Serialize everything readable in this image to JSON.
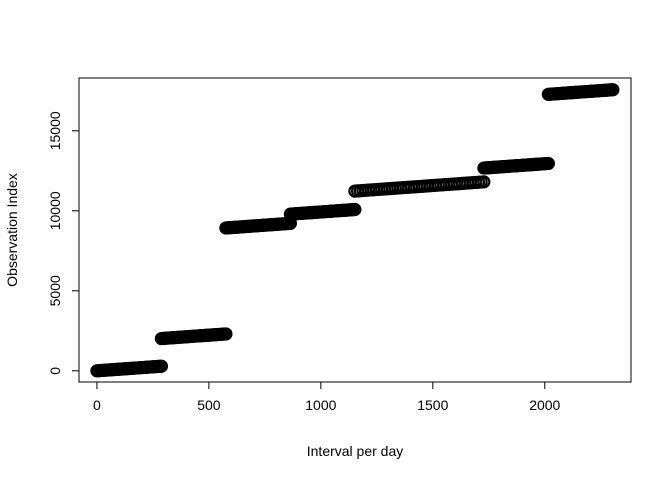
{
  "chart_data": {
    "type": "scatter",
    "title": "",
    "xlabel": "Interval per day",
    "ylabel": "Observation Index",
    "xlim": [
      -80,
      2385
    ],
    "ylim": [
      -700,
      18300
    ],
    "xticks": [
      0,
      500,
      1000,
      1500,
      2000
    ],
    "yticks": [
      0,
      5000,
      10000,
      15000
    ],
    "xtick_labels": [
      "0",
      "500",
      "1000",
      "1500",
      "2000"
    ],
    "ytick_labels": [
      "0",
      "5000",
      "10000",
      "15000"
    ],
    "grid": false,
    "legend": "none",
    "point_color": "#000000",
    "segments": [
      {
        "x": [
          0,
          288
        ],
        "y": [
          0,
          288
        ]
      },
      {
        "x": [
          288,
          576
        ],
        "y": [
          2016,
          2304
        ]
      },
      {
        "x": [
          576,
          864
        ],
        "y": [
          8928,
          9216
        ]
      },
      {
        "x": [
          864,
          1152
        ],
        "y": [
          9792,
          10080
        ]
      },
      {
        "x": [
          1152,
          1728
        ],
        "y": [
          11232,
          11808
        ]
      },
      {
        "x": [
          1728,
          2016
        ],
        "y": [
          12672,
          12960
        ]
      },
      {
        "x": [
          2016,
          2304
        ],
        "y": [
          17280,
          17568
        ]
      }
    ]
  }
}
